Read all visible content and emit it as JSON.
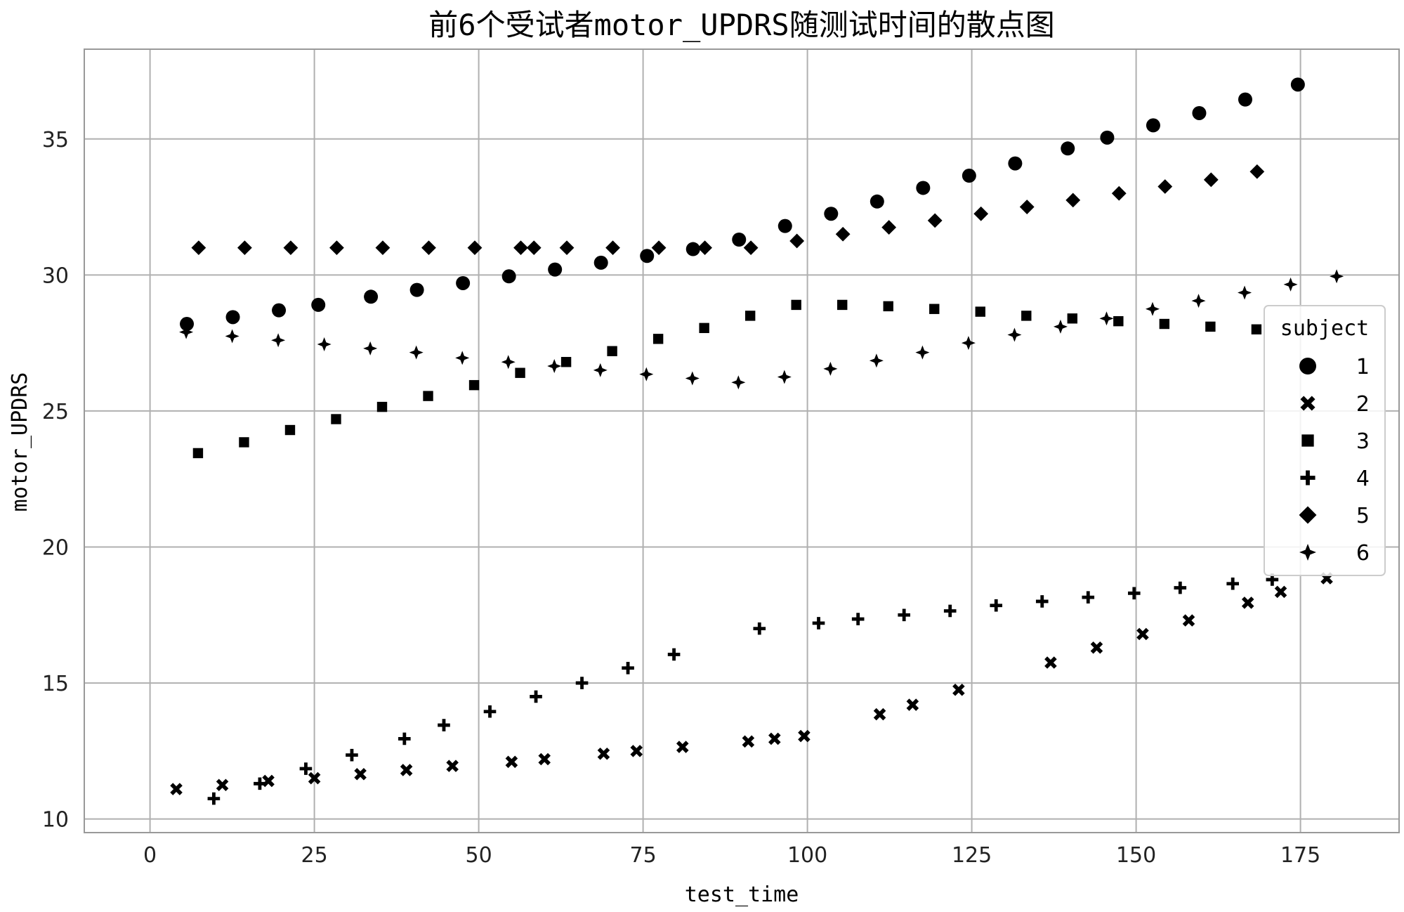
{
  "chart_data": {
    "type": "scatter",
    "title": "前6个受试者motor_UPDRS随测试时间的散点图",
    "xlabel": "test_time",
    "ylabel": "motor_UPDRS",
    "xlim": [
      -10,
      190
    ],
    "ylim": [
      9.5,
      38.3
    ],
    "xticks": [
      0,
      25,
      50,
      75,
      100,
      125,
      150,
      175
    ],
    "yticks": [
      10,
      15,
      20,
      25,
      30,
      35
    ],
    "grid": true,
    "legend_title": "subject",
    "legend_position": "right",
    "colors": {
      "marker": "#000000",
      "grid": "#b0b0b0",
      "frame": "#999999"
    },
    "series": [
      {
        "name": "1",
        "marker": "circle",
        "points": [
          [
            5.6,
            28.2
          ],
          [
            12.6,
            28.45
          ],
          [
            19.6,
            28.7
          ],
          [
            25.6,
            28.9
          ],
          [
            33.6,
            29.2
          ],
          [
            40.6,
            29.45
          ],
          [
            47.6,
            29.7
          ],
          [
            54.6,
            29.95
          ],
          [
            61.6,
            30.2
          ],
          [
            68.6,
            30.45
          ],
          [
            75.6,
            30.7
          ],
          [
            82.6,
            30.95
          ],
          [
            89.6,
            31.3
          ],
          [
            96.6,
            31.8
          ],
          [
            103.6,
            32.25
          ],
          [
            110.6,
            32.7
          ],
          [
            117.6,
            33.2
          ],
          [
            124.6,
            33.65
          ],
          [
            131.6,
            34.1
          ],
          [
            139.6,
            34.65
          ],
          [
            145.6,
            35.05
          ],
          [
            152.6,
            35.5
          ],
          [
            159.6,
            35.95
          ],
          [
            166.6,
            36.45
          ],
          [
            174.6,
            37.0
          ]
        ]
      },
      {
        "name": "2",
        "marker": "x",
        "points": [
          [
            4,
            11.1
          ],
          [
            11,
            11.25
          ],
          [
            18,
            11.4
          ],
          [
            25,
            11.5
          ],
          [
            32,
            11.65
          ],
          [
            39,
            11.8
          ],
          [
            46,
            11.95
          ],
          [
            55,
            12.1
          ],
          [
            60,
            12.2
          ],
          [
            69,
            12.4
          ],
          [
            74,
            12.5
          ],
          [
            81,
            12.65
          ],
          [
            91,
            12.85
          ],
          [
            95,
            12.95
          ],
          [
            99.5,
            13.05
          ],
          [
            111,
            13.85
          ],
          [
            116,
            14.2
          ],
          [
            123,
            14.75
          ],
          [
            137,
            15.75
          ],
          [
            144,
            16.3
          ],
          [
            151,
            16.8
          ],
          [
            158,
            17.3
          ],
          [
            167,
            17.95
          ],
          [
            172,
            18.35
          ],
          [
            179,
            18.85
          ]
        ]
      },
      {
        "name": "3",
        "marker": "square",
        "points": [
          [
            7.3,
            23.45
          ],
          [
            14.3,
            23.85
          ],
          [
            21.3,
            24.3
          ],
          [
            28.3,
            24.7
          ],
          [
            35.3,
            25.15
          ],
          [
            42.3,
            25.55
          ],
          [
            49.3,
            25.95
          ],
          [
            56.3,
            26.4
          ],
          [
            63.3,
            26.8
          ],
          [
            70.3,
            27.2
          ],
          [
            77.3,
            27.65
          ],
          [
            84.3,
            28.05
          ],
          [
            91.3,
            28.5
          ],
          [
            98.3,
            28.9
          ],
          [
            105.3,
            28.9
          ],
          [
            112.3,
            28.85
          ],
          [
            119.3,
            28.75
          ],
          [
            126.3,
            28.65
          ],
          [
            133.3,
            28.5
          ],
          [
            140.3,
            28.4
          ],
          [
            147.3,
            28.3
          ],
          [
            154.3,
            28.2
          ],
          [
            161.3,
            28.1
          ],
          [
            168.3,
            28.0
          ]
        ]
      },
      {
        "name": "4",
        "marker": "plus",
        "points": [
          [
            9.7,
            10.75
          ],
          [
            16.7,
            11.3
          ],
          [
            23.7,
            11.85
          ],
          [
            30.7,
            12.35
          ],
          [
            38.7,
            12.95
          ],
          [
            44.7,
            13.45
          ],
          [
            51.7,
            13.95
          ],
          [
            58.7,
            14.5
          ],
          [
            65.7,
            15.0
          ],
          [
            72.7,
            15.55
          ],
          [
            79.7,
            16.05
          ],
          [
            92.7,
            17.0
          ],
          [
            101.7,
            17.2
          ],
          [
            107.7,
            17.35
          ],
          [
            114.7,
            17.5
          ],
          [
            121.7,
            17.65
          ],
          [
            128.7,
            17.85
          ],
          [
            135.7,
            18.0
          ],
          [
            142.7,
            18.15
          ],
          [
            149.7,
            18.3
          ],
          [
            156.7,
            18.5
          ],
          [
            164.7,
            18.65
          ],
          [
            170.7,
            18.8
          ]
        ]
      },
      {
        "name": "5",
        "marker": "diamond",
        "points": [
          [
            7.4,
            31.0
          ],
          [
            14.4,
            31.0
          ],
          [
            21.4,
            31.0
          ],
          [
            28.4,
            31.0
          ],
          [
            35.4,
            31.0
          ],
          [
            42.4,
            31.0
          ],
          [
            49.4,
            31.0
          ],
          [
            56.4,
            31.0
          ],
          [
            58.4,
            31.0
          ],
          [
            63.4,
            31.0
          ],
          [
            70.4,
            31.0
          ],
          [
            77.4,
            31.0
          ],
          [
            84.4,
            31.0
          ],
          [
            91.4,
            31.0
          ],
          [
            98.4,
            31.25
          ],
          [
            105.4,
            31.5
          ],
          [
            112.4,
            31.75
          ],
          [
            119.4,
            32.0
          ],
          [
            126.4,
            32.25
          ],
          [
            133.4,
            32.5
          ],
          [
            140.4,
            32.75
          ],
          [
            147.4,
            33.0
          ],
          [
            154.4,
            33.25
          ],
          [
            161.4,
            33.5
          ],
          [
            168.4,
            33.8
          ]
        ]
      },
      {
        "name": "6",
        "marker": "star4",
        "points": [
          [
            5.5,
            27.9
          ],
          [
            12.5,
            27.75
          ],
          [
            19.5,
            27.6
          ],
          [
            26.5,
            27.45
          ],
          [
            33.5,
            27.3
          ],
          [
            40.5,
            27.15
          ],
          [
            47.5,
            26.95
          ],
          [
            54.5,
            26.8
          ],
          [
            61.5,
            26.65
          ],
          [
            68.5,
            26.5
          ],
          [
            75.5,
            26.35
          ],
          [
            82.5,
            26.2
          ],
          [
            89.5,
            26.05
          ],
          [
            96.5,
            26.25
          ],
          [
            103.5,
            26.55
          ],
          [
            110.5,
            26.85
          ],
          [
            117.5,
            27.15
          ],
          [
            124.5,
            27.5
          ],
          [
            131.5,
            27.8
          ],
          [
            138.5,
            28.1
          ],
          [
            145.5,
            28.4
          ],
          [
            152.5,
            28.75
          ],
          [
            159.5,
            29.05
          ],
          [
            166.5,
            29.35
          ],
          [
            173.5,
            29.65
          ],
          [
            180.5,
            29.95
          ]
        ]
      }
    ]
  }
}
